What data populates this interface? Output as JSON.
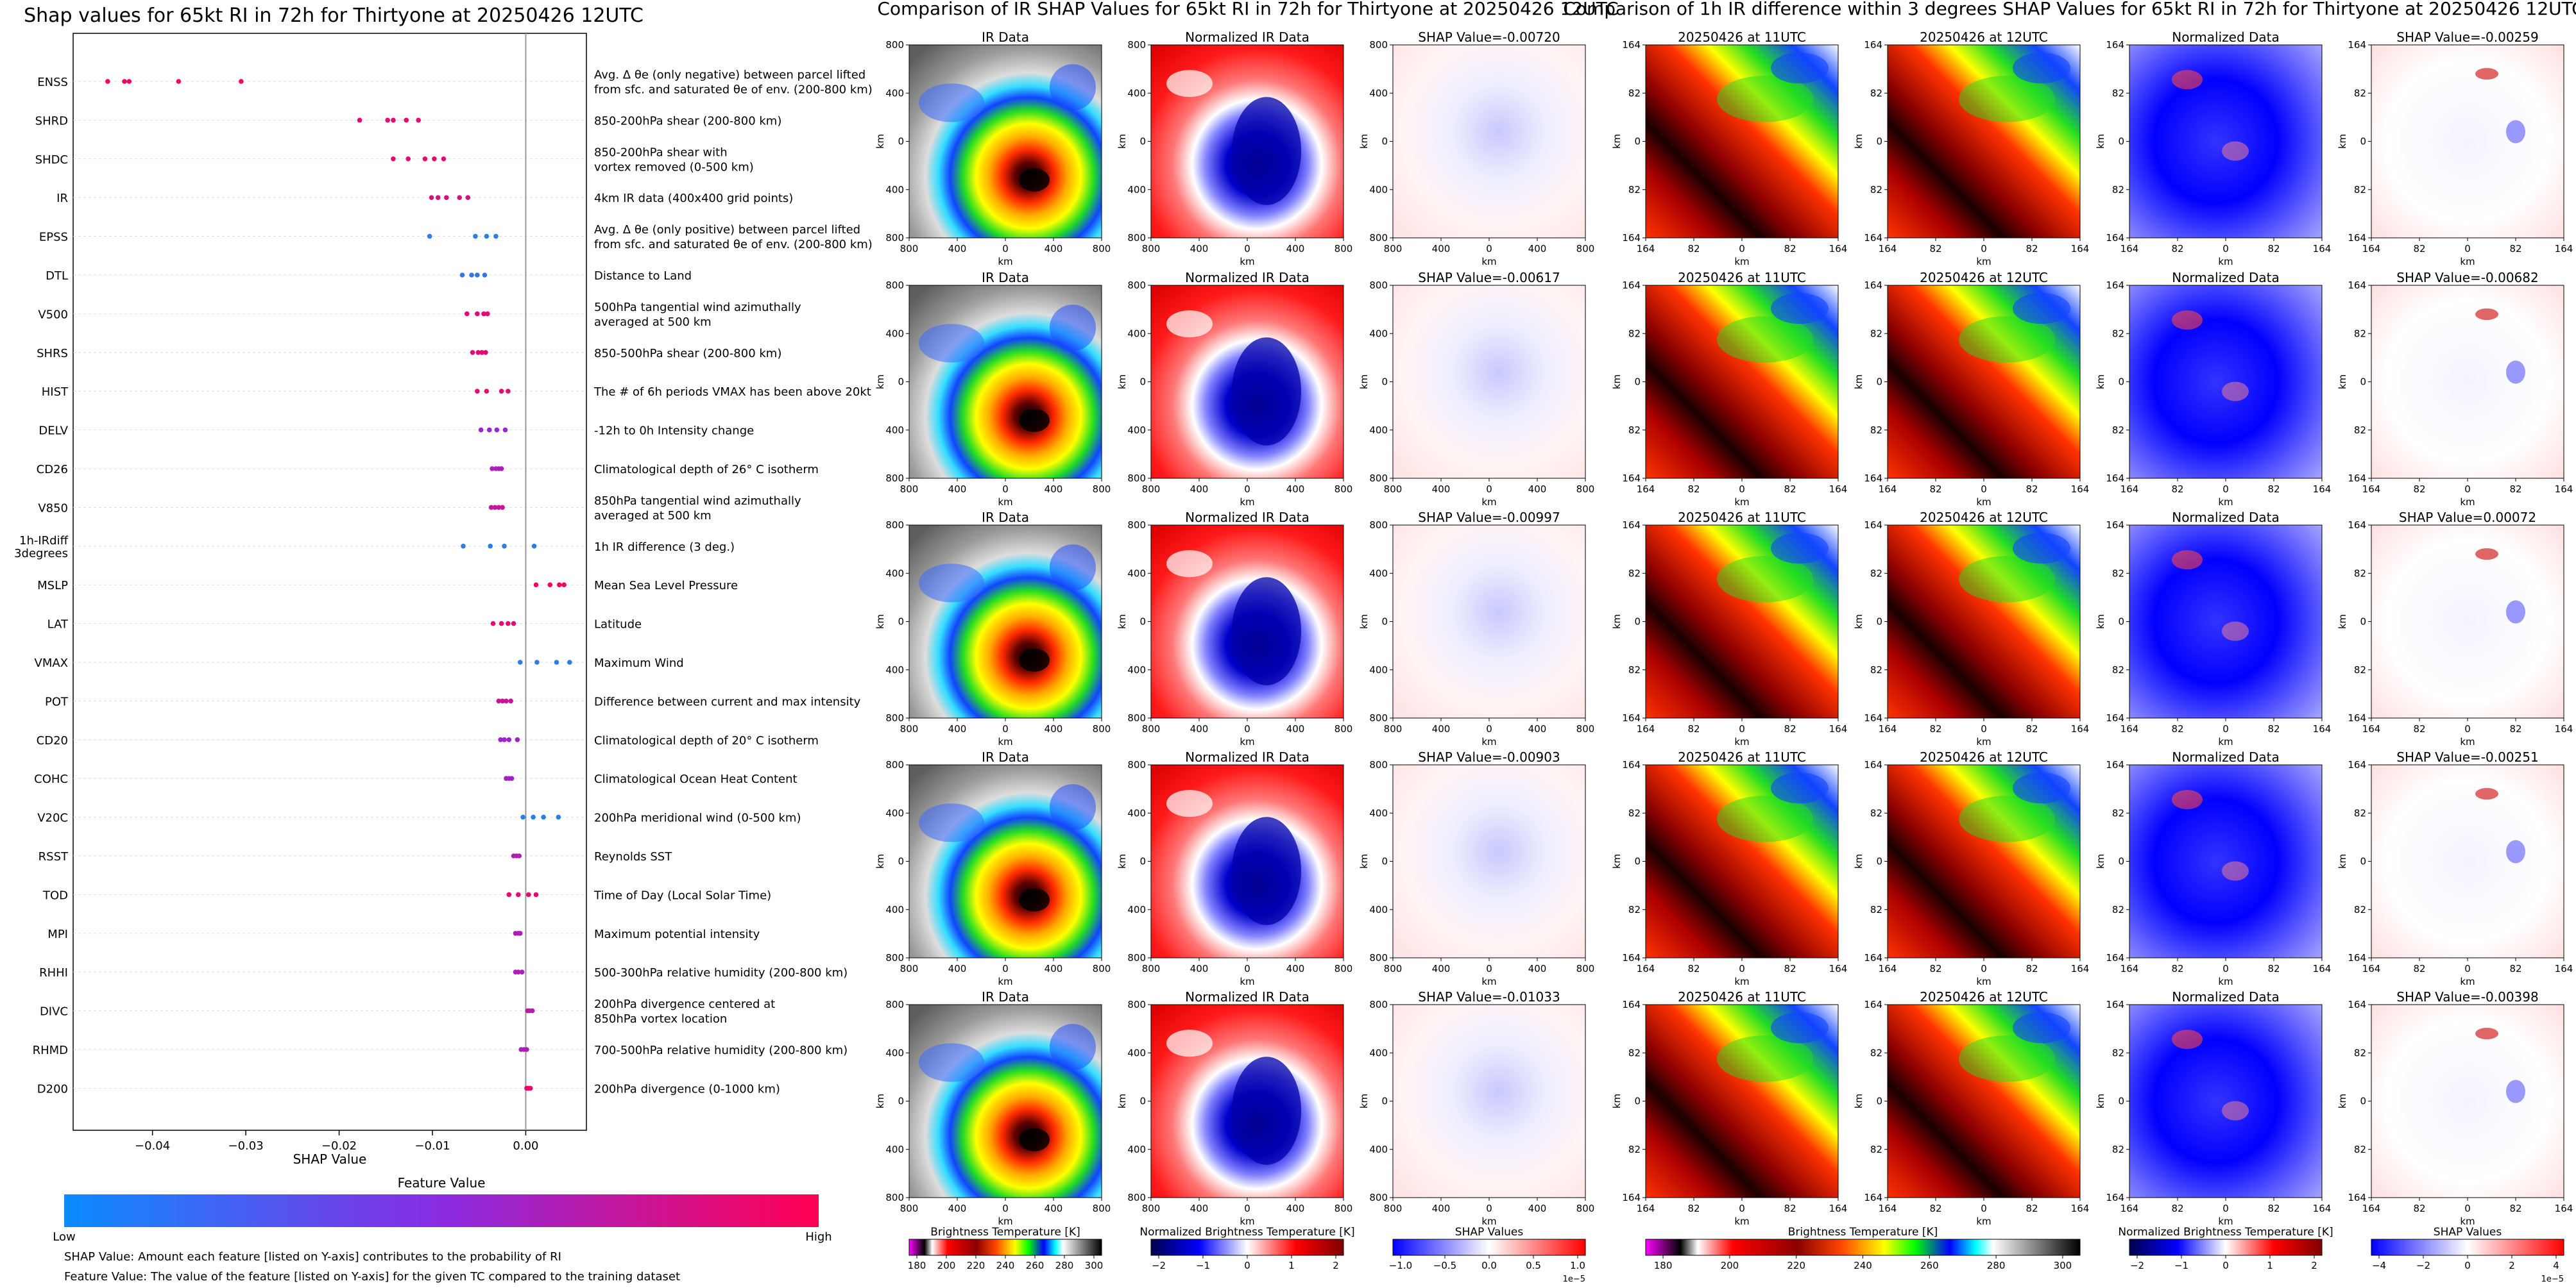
{
  "colors": {
    "low": "#1e88e5",
    "mid": "#8a2be2",
    "high": "#ff0052"
  },
  "chart_data": [
    {
      "type": "scatter",
      "title": "Shap values for 65kt RI in 72h for Thirtyone at 20250426 12UTC",
      "xlabel": "SHAP Value",
      "xlim": [
        -0.0485,
        0.0065
      ],
      "xticks": [
        -0.04,
        -0.03,
        -0.02,
        -0.01,
        0.0
      ],
      "xticklabels": [
        "−0.04",
        "−0.03",
        "−0.02",
        "−0.01",
        "0.00"
      ],
      "features": [
        {
          "code": "ENSS",
          "desc": "Avg. Δ θe (only negative) between parcel lifted\nfrom sfc. and saturated θe of env. (200-800 km)",
          "shap": [
            -0.0448,
            -0.043,
            -0.0425,
            -0.0372,
            -0.0305
          ],
          "level": 0.95
        },
        {
          "code": "SHRD",
          "desc": "850-200hPa shear (200-800 km)",
          "shap": [
            -0.0178,
            -0.0148,
            -0.0142,
            -0.0128,
            -0.0115
          ],
          "level": 0.9
        },
        {
          "code": "SHDC",
          "desc": "850-200hPa shear with\nvortex removed (0-500 km)",
          "shap": [
            -0.0142,
            -0.0126,
            -0.0108,
            -0.0098,
            -0.0088
          ],
          "level": 0.9
        },
        {
          "code": "IR",
          "desc": "4km IR data (400x400 grid points)",
          "shap": [
            -0.0101,
            -0.0094,
            -0.0085,
            -0.0071,
            -0.0062
          ],
          "level": 0.85
        },
        {
          "code": "EPSS",
          "desc": "Avg. Δ θe (only positive) between parcel lifted\nfrom sfc. and saturated θe of env. (200-800 km)",
          "shap": [
            -0.0103,
            -0.0054,
            -0.0042,
            -0.0032
          ],
          "level": 0.05
        },
        {
          "code": "DTL",
          "desc": "Distance to Land",
          "shap": [
            -0.0068,
            -0.0058,
            -0.0052,
            -0.0044
          ],
          "level": 0.1
        },
        {
          "code": "V500",
          "desc": "500hPa tangential wind azimuthally\naveraged at 500 km",
          "shap": [
            -0.0063,
            -0.0052,
            -0.0045,
            -0.0041
          ],
          "level": 0.88
        },
        {
          "code": "SHRS",
          "desc": "850-500hPa shear (200-800 km)",
          "shap": [
            -0.0057,
            -0.0051,
            -0.0047,
            -0.0043
          ],
          "level": 0.88
        },
        {
          "code": "HIST",
          "desc": "The # of 6h periods VMAX has been above 20kt",
          "shap": [
            -0.0052,
            -0.0042,
            -0.0026,
            -0.0019
          ],
          "level": 0.9
        },
        {
          "code": "DELV",
          "desc": "-12h to 0h Intensity change",
          "shap": [
            -0.0048,
            -0.0039,
            -0.0031,
            -0.0022
          ],
          "level": 0.55
        },
        {
          "code": "CD26",
          "desc": "Climatological depth of 26° C isotherm",
          "shap": [
            -0.0036,
            -0.0032,
            -0.0029,
            -0.0026
          ],
          "level": 0.65
        },
        {
          "code": "V850",
          "desc": "850hPa tangential wind azimuthally\naveraged at 500 km",
          "shap": [
            -0.0037,
            -0.0033,
            -0.0029,
            -0.0025
          ],
          "level": 0.75
        },
        {
          "code": "1h-IRdiff\n3degrees",
          "desc": "1h IR difference (3 deg.)",
          "shap": [
            -0.0067,
            -0.0038,
            -0.0023,
            0.0009
          ],
          "level": 0.05
        },
        {
          "code": "MSLP",
          "desc": "Mean Sea Level Pressure",
          "shap": [
            0.0011,
            0.0026,
            0.0036,
            0.0041
          ],
          "level": 0.95
        },
        {
          "code": "LAT",
          "desc": "Latitude",
          "shap": [
            -0.0035,
            -0.0026,
            -0.0019,
            -0.0013
          ],
          "level": 0.9
        },
        {
          "code": "VMAX",
          "desc": "Maximum Wind",
          "shap": [
            -0.0006,
            0.0012,
            0.0033,
            0.0047
          ],
          "level": 0.05
        },
        {
          "code": "POT",
          "desc": "Difference between current and max intensity",
          "shap": [
            -0.0029,
            -0.0025,
            -0.0021,
            -0.0016
          ],
          "level": 0.75
        },
        {
          "code": "CD20",
          "desc": "Climatological depth of 20° C isotherm",
          "shap": [
            -0.0027,
            -0.0023,
            -0.0018,
            -0.0009
          ],
          "level": 0.6
        },
        {
          "code": "COHC",
          "desc": "Climatological Ocean Heat Content",
          "shap": [
            -0.0021,
            -0.0018,
            -0.0015
          ],
          "level": 0.6
        },
        {
          "code": "V20C",
          "desc": "200hPa meridional wind (0-500 km)",
          "shap": [
            -0.0003,
            0.0008,
            0.0019,
            0.0035
          ],
          "level": 0.05
        },
        {
          "code": "RSST",
          "desc": "Reynolds SST",
          "shap": [
            -0.0013,
            -0.001,
            -0.0007
          ],
          "level": 0.65
        },
        {
          "code": "TOD",
          "desc": "Time of Day (Local Solar Time)",
          "shap": [
            -0.0018,
            -0.0008,
            0.0003,
            0.0011
          ],
          "level": 0.9
        },
        {
          "code": "MPI",
          "desc": "Maximum potential intensity",
          "shap": [
            -0.0011,
            -0.0008,
            -0.0006
          ],
          "level": 0.65
        },
        {
          "code": "RHHI",
          "desc": "500-300hPa relative humidity (200-800 km)",
          "shap": [
            -0.0011,
            -0.0008,
            -0.0004
          ],
          "level": 0.65
        },
        {
          "code": "DIVC",
          "desc": "200hPa divergence centered at\n850hPa vortex location",
          "shap": [
            0.0002,
            0.0004,
            0.0007
          ],
          "level": 0.7
        },
        {
          "code": "RHMD",
          "desc": "700-500hPa relative humidity (200-800 km)",
          "shap": [
            -0.0005,
            -0.0002,
            0.0001
          ],
          "level": 0.65
        },
        {
          "code": "D200",
          "desc": "200hPa divergence (0-1000 km)",
          "shap": [
            0.0001,
            0.0003,
            0.0005
          ],
          "level": 0.9
        }
      ],
      "colorbar": {
        "title": "Feature Value",
        "low_label": "Low",
        "high_label": "High"
      },
      "notes": [
        "SHAP Value: Amount each feature [listed on Y-axis] contributes to the probability of RI",
        "Feature Value: The value of the feature [listed on Y-axis] for the given TC compared to the training dataset"
      ]
    },
    {
      "type": "heatmap",
      "title": "Comparison of IR SHAP Values for 65kt RI in 72h for Thirtyone at 20250426 12UTC",
      "axis_label": "km",
      "ticks": [
        "800",
        "400",
        "0",
        "400",
        "800"
      ],
      "columns": [
        "IR Data",
        "Normalized IR Data"
      ],
      "shap_titles": [
        "SHAP Value=-0.00720",
        "SHAP Value=-0.00617",
        "SHAP Value=-0.00997",
        "SHAP Value=-0.00903",
        "SHAP Value=-0.01033"
      ],
      "colorbars": [
        {
          "label": "Brightness Temperature [K]",
          "ticks": [
            "180",
            "200",
            "220",
            "240",
            "260",
            "280",
            "300"
          ]
        },
        {
          "label": "Normalized Brightness Temperature [K]",
          "ticks": [
            "−2",
            "−1",
            "0",
            "1",
            "2"
          ]
        },
        {
          "label": "SHAP Values",
          "ticks": [
            "−1.0",
            "−0.5",
            "0.0",
            "0.5",
            "1.0"
          ],
          "exponent": "1e−5"
        }
      ]
    },
    {
      "type": "heatmap",
      "title": "Comparison of 1h IR difference within 3 degrees SHAP Values for 65kt RI in 72h for Thirtyone at 20250426 12UTC",
      "axis_label": "km",
      "ticks": [
        "164",
        "82",
        "0",
        "82",
        "164"
      ],
      "columns": [
        "20250426 at 11UTC",
        "20250426 at 12UTC",
        "Normalized Data"
      ],
      "shap_titles": [
        "SHAP Value=-0.00259",
        "SHAP Value=-0.00682",
        "SHAP Value=0.00072",
        "SHAP Value=-0.00251",
        "SHAP Value=-0.00398"
      ],
      "colorbars": [
        {
          "label": "Brightness Temperature [K]",
          "ticks": [
            "180",
            "200",
            "220",
            "240",
            "260",
            "280",
            "300"
          ]
        },
        {
          "label": "Normalized Brightness Temperature [K]",
          "ticks": [
            "−2",
            "−1",
            "0",
            "1",
            "2"
          ]
        },
        {
          "label": "SHAP Values",
          "ticks": [
            "−4",
            "−2",
            "0",
            "2",
            "4"
          ],
          "exponent": "1e−5"
        }
      ]
    }
  ]
}
